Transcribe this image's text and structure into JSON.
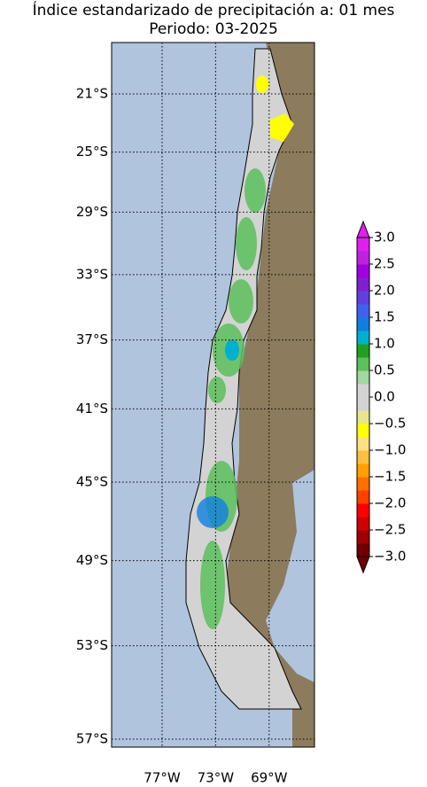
{
  "header": {
    "title": "Índice estandarizado de precipitación a: 01 mes",
    "subtitle": "Periodo: 03-2025"
  },
  "map": {
    "lat_ticks": [
      {
        "value": -21,
        "label": "21°S"
      },
      {
        "value": -25,
        "label": "25°S"
      },
      {
        "value": -29,
        "label": "29°S"
      },
      {
        "value": -33,
        "label": "33°S"
      },
      {
        "value": -37,
        "label": "37°S"
      },
      {
        "value": -41,
        "label": "41°S"
      },
      {
        "value": -45,
        "label": "45°S"
      },
      {
        "value": -49,
        "label": "49°S"
      },
      {
        "value": -53,
        "label": "53°S"
      },
      {
        "value": -57,
        "label": "57°S"
      }
    ],
    "lon_ticks": [
      {
        "value": -77,
        "label": "77°W"
      },
      {
        "value": -73,
        "label": "73°W"
      },
      {
        "value": -69,
        "label": "69°W"
      }
    ]
  },
  "colorbar": {
    "lim": [
      -3,
      3
    ],
    "ticks": [
      {
        "value": 3,
        "label": "3.0"
      },
      {
        "value": 2.5,
        "label": "2.5"
      },
      {
        "value": 2,
        "label": "2.0"
      },
      {
        "value": 1.5,
        "label": "1.5"
      },
      {
        "value": 1,
        "label": "1.0"
      },
      {
        "value": 0.5,
        "label": "0.5"
      },
      {
        "value": 0,
        "label": "0.0"
      },
      {
        "value": -0.5,
        "label": "−0.5"
      },
      {
        "value": -1,
        "label": "−1.0"
      },
      {
        "value": -1.5,
        "label": "−1.5"
      },
      {
        "value": -2,
        "label": "−2.0"
      },
      {
        "value": -2.5,
        "label": "−2.5"
      },
      {
        "value": -3,
        "label": "−3.0"
      }
    ],
    "colors": [
      "#700000",
      "#a00000",
      "#d00000",
      "#ff0000",
      "#ff4000",
      "#ff7000",
      "#ffa000",
      "#ffc040",
      "#ffe080",
      "#ffff00",
      "#e6e68c",
      "#d3d3d3",
      "#d3d3d3",
      "#a0d8a0",
      "#5cc05c",
      "#20a020",
      "#00b0d0",
      "#1080e0",
      "#4060f0",
      "#6040e0",
      "#8020d0",
      "#a000e0",
      "#c020e0",
      "#e020f0"
    ]
  }
}
